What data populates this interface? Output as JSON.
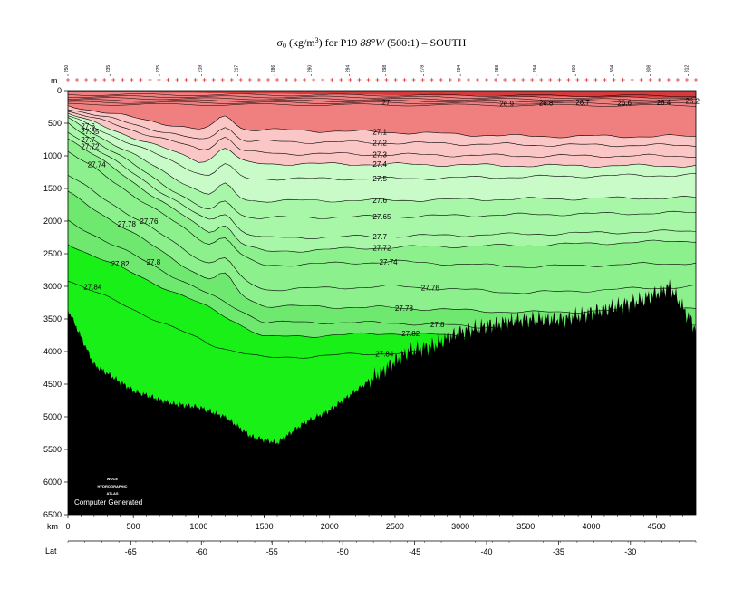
{
  "title": {
    "sigma": "σ",
    "sigma_sub": "0",
    "units_pre": " (kg/m",
    "units_sup": "3",
    "units_post": ") for P19 ",
    "lon_italic": "88°W",
    "rest": " (500:1) – SOUTH"
  },
  "axes": {
    "depth_unit": "m",
    "distance_unit": "km",
    "lat_label": "Lat"
  },
  "footer": {
    "logo_lines": [
      "WOCE",
      "HYDROGRAPHIC",
      "ATLAS"
    ],
    "computer_generated": "Computer Generated"
  },
  "colors": {
    "red_dark": "#d63a3a",
    "red_mid": "#f08080",
    "red_light": "#f7a8a8",
    "pink": "#fbc6c6",
    "green_pale": "#c8fbc8",
    "green_light": "#a8f7a8",
    "green_mid": "#8cf08c",
    "green_deep": "#6ee86e",
    "green_bright": "#18f018",
    "bathymetry": "#000000"
  },
  "chart_data": {
    "type": "section",
    "title": "σ0 (kg/m3) for P19 88°W (500:1) – SOUTH",
    "xlabel": "km",
    "ylabel": "m",
    "xlim": [
      0,
      4800
    ],
    "ylim": [
      0,
      6500
    ],
    "y_reversed": true,
    "x_ticks": [
      0,
      500,
      1000,
      1500,
      2000,
      2500,
      3000,
      3500,
      4000,
      4500
    ],
    "y_ticks": [
      0,
      500,
      1000,
      1500,
      2000,
      2500,
      3000,
      3500,
      4000,
      4500,
      5000,
      5500,
      6000,
      6500
    ],
    "lat_ticks": [
      {
        "label": "-65",
        "km": 480
      },
      {
        "label": "-60",
        "km": 1020
      },
      {
        "label": "-55",
        "km": 1560
      },
      {
        "label": "-50",
        "km": 2100
      },
      {
        "label": "-45",
        "km": 2650
      },
      {
        "label": "-40",
        "km": 3200
      },
      {
        "label": "-35",
        "km": 3750
      },
      {
        "label": "-30",
        "km": 4300
      }
    ],
    "station_labels": [
      {
        "label": "250",
        "km": 0
      },
      {
        "label": "235",
        "km": 320
      },
      {
        "label": "225",
        "km": 700
      },
      {
        "label": "218",
        "km": 1020
      },
      {
        "label": "217",
        "km": 1300
      },
      {
        "label": "286",
        "km": 1580
      },
      {
        "label": "290",
        "km": 1860
      },
      {
        "label": "294",
        "km": 2150
      },
      {
        "label": "298",
        "km": 2430
      },
      {
        "label": "278",
        "km": 2720
      },
      {
        "label": "284",
        "km": 3000
      },
      {
        "label": "288",
        "km": 3290
      },
      {
        "label": "294",
        "km": 3580
      },
      {
        "label": "300",
        "km": 3880
      },
      {
        "label": "304",
        "km": 4170
      },
      {
        "label": "308",
        "km": 4450
      },
      {
        "label": "312",
        "km": 4740
      }
    ],
    "contour_levels": [
      "26.2",
      "26.4",
      "26.6",
      "26.7",
      "26.8",
      "26.9",
      "27",
      "27.1",
      "27.2",
      "27.3",
      "27.4",
      "27.5",
      "27.6",
      "27.65",
      "27.7",
      "27.72",
      "27.74",
      "27.76",
      "27.78",
      "27.8",
      "27.82",
      "27.84"
    ],
    "contours": [
      {
        "level": "27.1",
        "x": [
          0,
          1000,
          1500,
          2500,
          3500,
          4800
        ],
        "y": [
          230,
          600,
          600,
          640,
          700,
          700
        ]
      },
      {
        "level": "27.2",
        "x": [
          0,
          1000,
          1500,
          2500,
          3500,
          4800
        ],
        "y": [
          270,
          760,
          780,
          800,
          830,
          840
        ]
      },
      {
        "level": "27.3",
        "x": [
          0,
          1000,
          1500,
          2500,
          3500,
          4800
        ],
        "y": [
          310,
          900,
          960,
          980,
          1000,
          1000
        ]
      },
      {
        "level": "27.4",
        "x": [
          0,
          1000,
          1500,
          2500,
          3500,
          4800
        ],
        "y": [
          350,
          1080,
          1120,
          1130,
          1150,
          1150
        ]
      },
      {
        "level": "27.5",
        "x": [
          0,
          1100,
          1500,
          2500,
          3500,
          4800
        ],
        "y": [
          390,
          1350,
          1350,
          1350,
          1320,
          1290
        ]
      },
      {
        "level": "27.6",
        "x": [
          0,
          1100,
          1500,
          2500,
          3500,
          4800
        ],
        "y": [
          430,
          1650,
          1690,
          1680,
          1660,
          1640
        ]
      },
      {
        "level": "27.65",
        "x": [
          0,
          1100,
          1500,
          2500,
          3500,
          4800
        ],
        "y": [
          500,
          1900,
          1950,
          1930,
          1900,
          1870
        ]
      },
      {
        "level": "27.7",
        "x": [
          0,
          1100,
          1500,
          2500,
          3500,
          4800
        ],
        "y": [
          620,
          2050,
          2260,
          2230,
          2200,
          2150
        ]
      },
      {
        "level": "27.72",
        "x": [
          0,
          1100,
          1500,
          2500,
          3500,
          4800
        ],
        "y": [
          720,
          2220,
          2470,
          2400,
          2370,
          2300
        ]
      },
      {
        "level": "27.74",
        "x": [
          0,
          1100,
          1500,
          2500,
          3500,
          4800
        ],
        "y": [
          930,
          2400,
          2680,
          2620,
          2700,
          2640
        ]
      },
      {
        "level": "27.76",
        "x": [
          0,
          1100,
          1500,
          2500,
          3500,
          4800
        ],
        "y": [
          1300,
          2700,
          3050,
          3000,
          3100,
          3000
        ]
      },
      {
        "level": "27.78",
        "x": [
          0,
          1100,
          1500,
          2500,
          3500,
          4800
        ],
        "y": [
          1560,
          2950,
          3300,
          3330,
          3400,
          3350
        ]
      },
      {
        "level": "27.8",
        "x": [
          0,
          1100,
          1500,
          2500,
          3500,
          4800
        ],
        "y": [
          2000,
          3150,
          3550,
          3560,
          3650,
          3600
        ]
      },
      {
        "level": "27.82",
        "x": [
          0,
          1100,
          1500,
          2500,
          3500,
          4800
        ],
        "y": [
          2350,
          3350,
          3780,
          3720,
          3800,
          3750
        ]
      },
      {
        "level": "27.84",
        "x": [
          0,
          1100,
          1500,
          2500,
          3500,
          4800
        ],
        "y": [
          2900,
          3900,
          4100,
          4020,
          4000,
          3950
        ]
      }
    ],
    "bathymetry_km": [
      0,
      200,
      500,
      800,
      1000,
      1200,
      1400,
      1600,
      1800,
      2000,
      2200,
      2400,
      2600,
      2800,
      3000,
      3200,
      3500,
      3800,
      4000,
      4200,
      4400,
      4600,
      4800
    ],
    "bathymetry_depth": [
      3350,
      4200,
      4600,
      4800,
      4850,
      5000,
      5300,
      5400,
      5100,
      4900,
      4600,
      4300,
      4000,
      3900,
      3700,
      3600,
      3500,
      3500,
      3400,
      3300,
      3200,
      3000,
      3650
    ]
  }
}
